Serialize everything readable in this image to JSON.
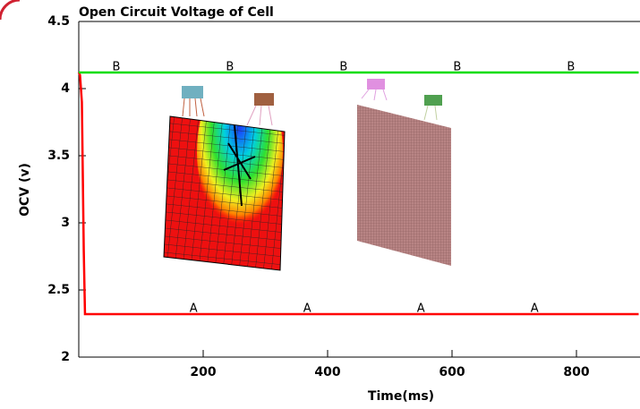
{
  "chart_data": {
    "type": "line",
    "title": "Open Circuit Voltage of Cell",
    "x_label": "Time(ms)",
    "y_label": "OCV (v)",
    "x": [
      0,
      2,
      5,
      8,
      10,
      900
    ],
    "series": [
      {
        "name": "A",
        "color": "#ff0000",
        "values": [
          4.12,
          4.1,
          3.9,
          2.8,
          2.32,
          2.32
        ]
      },
      {
        "name": "B",
        "color": "#00dd00",
        "values": [
          4.12,
          4.12,
          4.12,
          4.12,
          4.12,
          4.12
        ]
      }
    ],
    "xlim": [
      0,
      900
    ],
    "ylim": [
      2,
      4.5
    ],
    "xticks": [
      200,
      400,
      600,
      800
    ],
    "yticks": [
      2,
      2.5,
      3,
      3.5,
      4,
      4.5
    ],
    "grid": false
  }
}
